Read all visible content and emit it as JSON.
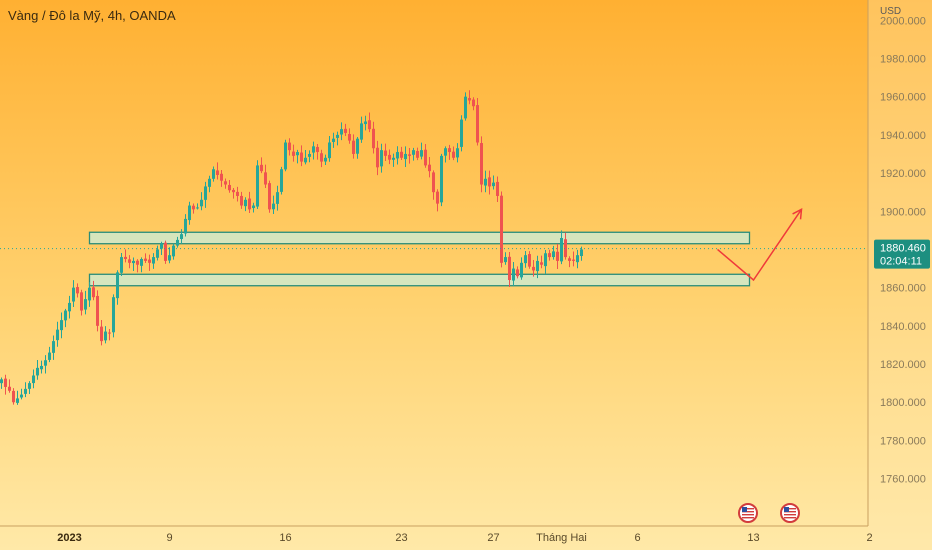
{
  "chart_data": {
    "type": "candlestick",
    "title": "Vàng / Đô la Mỹ, 4h, OANDA",
    "y_unit": "USD",
    "ylim": [
      1742,
      2008
    ],
    "y_ticks": [
      "2000.000",
      "1980.000",
      "1960.000",
      "1940.000",
      "1920.000",
      "1900.000",
      "1880.000",
      "1860.000",
      "1840.000",
      "1820.000",
      "1800.000",
      "1780.000",
      "1760.000"
    ],
    "x_ticks": [
      {
        "label": "2023",
        "bar": 17,
        "bold": true
      },
      {
        "label": "9",
        "bar": 42
      },
      {
        "label": "16",
        "bar": 71
      },
      {
        "label": "23",
        "bar": 100
      },
      {
        "label": "27",
        "bar": 123
      },
      {
        "label": "Tháng Hai",
        "bar": 140
      },
      {
        "label": "6",
        "bar": 159
      },
      {
        "label": "13",
        "bar": 188
      },
      {
        "label": "2",
        "bar": 217
      }
    ],
    "bar_count": 230,
    "close_series": [
      1812,
      1808,
      1806,
      1800,
      1802,
      1804,
      1807,
      1810,
      1814,
      1818,
      1819,
      1822,
      1826,
      1832,
      1838,
      1843,
      1848,
      1852,
      1860,
      1857,
      1848,
      1854,
      1860,
      1855,
      1840,
      1832,
      1837,
      1836,
      1855,
      1868,
      1876,
      1875,
      1873,
      1874,
      1872,
      1875,
      1874,
      1873,
      1876,
      1880,
      1883,
      1874,
      1877,
      1882,
      1885,
      1888,
      1896,
      1903,
      1901,
      1902,
      1906,
      1913,
      1917,
      1922,
      1919,
      1916,
      1914,
      1911,
      1910,
      1908,
      1903,
      1906,
      1901,
      1903,
      1924,
      1921,
      1914,
      1901,
      1904,
      1910,
      1922,
      1936,
      1932,
      1929,
      1931,
      1926,
      1928,
      1930,
      1934,
      1931,
      1926,
      1928,
      1936,
      1938,
      1940,
      1943,
      1941,
      1937,
      1930,
      1938,
      1946,
      1947,
      1943,
      1933,
      1923,
      1932,
      1929,
      1927,
      1928,
      1931,
      1928,
      1930,
      1929,
      1932,
      1928,
      1932,
      1924,
      1921,
      1910,
      1904,
      1929,
      1933,
      1931,
      1928,
      1933,
      1948,
      1960,
      1958,
      1955,
      1936,
      1914,
      1917,
      1913,
      1915,
      1908,
      1873,
      1876,
      1864,
      1870,
      1866,
      1873,
      1877,
      1871,
      1869,
      1874,
      1872,
      1878,
      1876,
      1879,
      1874,
      1886,
      1876,
      1874,
      1874,
      1877,
      1880
    ],
    "zones": [
      {
        "name": "resistance-zone",
        "from_bar": 22,
        "to_bar": 187,
        "low": 1883,
        "high": 1889
      },
      {
        "name": "support-zone",
        "from_bar": 22,
        "to_bar": 187,
        "low": 1861,
        "high": 1867
      }
    ],
    "projection": [
      [
        179,
        1880
      ],
      [
        188,
        1864
      ],
      [
        200,
        1901
      ]
    ],
    "current_price": "1880.460",
    "countdown": "02:04:11",
    "colors": {
      "up": "#26a69a",
      "down": "#ef5350",
      "zone_fill": "#cfeacd",
      "zone_stroke": "#2a8c78",
      "projection": "#ef3a3a",
      "price_label_bg": "#1d8f80",
      "grid": "#e8b860"
    }
  }
}
